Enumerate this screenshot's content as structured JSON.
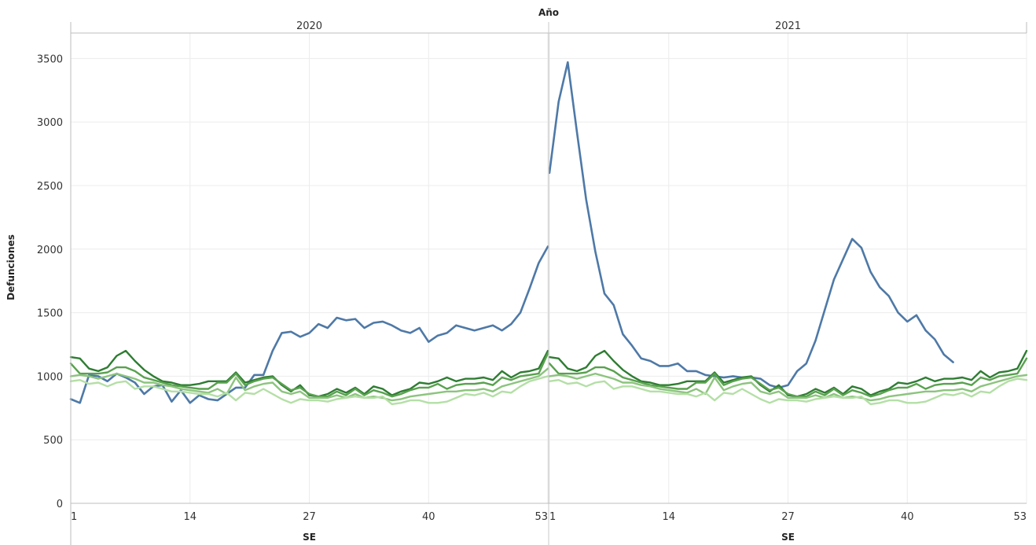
{
  "chart_data": {
    "type": "line",
    "column_header_title": "Año",
    "ylabel": "Defunciones",
    "xlabel": "SE",
    "ylim": [
      0,
      3700
    ],
    "y_ticks": [
      0,
      500,
      1000,
      1500,
      2000,
      2500,
      3000,
      3500
    ],
    "x_ticks": [
      1,
      14,
      27,
      40,
      53
    ],
    "grid": true,
    "panels": [
      {
        "label": "2020",
        "x_range": [
          1,
          53
        ],
        "series": [
          {
            "color": "#4e79a7",
            "values": [
              820,
              790,
              1010,
              1000,
              960,
              1020,
              990,
              950,
              860,
              920,
              930,
              800,
              890,
              790,
              850,
              820,
              810,
              860,
              910,
              910,
              1010,
              1010,
              1200,
              1340,
              1350,
              1310,
              1340,
              1410,
              1380,
              1460,
              1440,
              1450,
              1380,
              1420,
              1430,
              1400,
              1360,
              1340,
              1380,
              1270,
              1320,
              1340,
              1400,
              1380,
              1360,
              1380,
              1400,
              1360,
              1410,
              1500,
              1690,
              1890,
              2020
            ]
          },
          {
            "color": "#2e7d32",
            "values": [
              1150,
              1140,
              1060,
              1040,
              1070,
              1160,
              1200,
              1120,
              1050,
              1000,
              960,
              950,
              930,
              930,
              940,
              960,
              960,
              960,
              1030,
              950,
              970,
              990,
              1000,
              930,
              880,
              930,
              850,
              840,
              860,
              900,
              870,
              910,
              860,
              920,
              900,
              850,
              880,
              900,
              950,
              940,
              960,
              990,
              960,
              980,
              980,
              990,
              970,
              1040,
              990,
              1030,
              1040,
              1060,
              1200
            ]
          },
          {
            "color": "#59a14f",
            "values": [
              1100,
              1020,
              1020,
              1020,
              1030,
              1070,
              1070,
              1040,
              990,
              970,
              950,
              930,
              920,
              910,
              900,
              900,
              950,
              950,
              1020,
              930,
              960,
              980,
              990,
              940,
              890,
              910,
              860,
              840,
              840,
              880,
              850,
              900,
              850,
              890,
              870,
              840,
              860,
              890,
              910,
              910,
              940,
              900,
              930,
              940,
              940,
              950,
              930,
              990,
              970,
              1000,
              1010,
              1020,
              1180
            ]
          },
          {
            "color": "#8cc47e",
            "values": [
              1000,
              1010,
              1000,
              980,
              1000,
              1020,
              1000,
              980,
              950,
              950,
              930,
              920,
              900,
              890,
              880,
              870,
              900,
              860,
              990,
              890,
              920,
              940,
              950,
              880,
              860,
              880,
              830,
              830,
              830,
              850,
              830,
              860,
              830,
              840,
              830,
              810,
              820,
              840,
              850,
              860,
              870,
              880,
              880,
              890,
              890,
              900,
              880,
              920,
              940,
              960,
              980,
              1000,
              1060
            ]
          },
          {
            "color": "#b4dfa6",
            "values": [
              960,
              970,
              940,
              950,
              920,
              950,
              960,
              900,
              920,
              920,
              900,
              880,
              880,
              870,
              860,
              860,
              840,
              870,
              810,
              870,
              860,
              900,
              860,
              820,
              790,
              820,
              810,
              810,
              800,
              820,
              830,
              840,
              830,
              830,
              840,
              780,
              790,
              810,
              810,
              790,
              790,
              800,
              830,
              860,
              850,
              870,
              840,
              880,
              870,
              920,
              960,
              980,
              1000
            ]
          }
        ]
      },
      {
        "label": "2021",
        "x_range": [
          1,
          53
        ],
        "series": [
          {
            "color": "#4e79a7",
            "values": [
              2600,
              3160,
              3470,
              2920,
              2390,
              1980,
              1650,
              1560,
              1330,
              1240,
              1140,
              1120,
              1080,
              1080,
              1100,
              1040,
              1040,
              1010,
              1000,
              990,
              1000,
              990,
              990,
              980,
              930,
              910,
              930,
              1040,
              1100,
              1280,
              1520,
              1760,
              1920,
              2080,
              2010,
              1820,
              1700,
              1630,
              1500,
              1430,
              1480,
              1360,
              1290,
              1170,
              1110
            ]
          },
          {
            "color": "#2e7d32",
            "values": [
              1150,
              1140,
              1060,
              1040,
              1070,
              1160,
              1200,
              1120,
              1050,
              1000,
              960,
              950,
              930,
              930,
              940,
              960,
              960,
              960,
              1030,
              950,
              970,
              990,
              1000,
              930,
              880,
              930,
              850,
              840,
              860,
              900,
              870,
              910,
              860,
              920,
              900,
              850,
              880,
              900,
              950,
              940,
              960,
              990,
              960,
              980,
              980,
              990,
              970,
              1040,
              990,
              1030,
              1040,
              1060,
              1200
            ]
          },
          {
            "color": "#59a14f",
            "values": [
              1100,
              1020,
              1020,
              1020,
              1030,
              1070,
              1070,
              1040,
              990,
              970,
              950,
              930,
              920,
              910,
              900,
              900,
              950,
              950,
              1020,
              930,
              960,
              980,
              990,
              940,
              890,
              910,
              860,
              840,
              840,
              880,
              850,
              900,
              850,
              890,
              870,
              840,
              860,
              890,
              910,
              910,
              940,
              900,
              930,
              940,
              940,
              950,
              930,
              990,
              970,
              1000,
              1010,
              1020,
              1140
            ]
          },
          {
            "color": "#8cc47e",
            "values": [
              1000,
              1010,
              1000,
              980,
              1000,
              1020,
              1000,
              980,
              950,
              950,
              930,
              920,
              900,
              890,
              880,
              870,
              900,
              860,
              990,
              890,
              920,
              940,
              950,
              880,
              860,
              880,
              830,
              830,
              830,
              850,
              830,
              860,
              830,
              840,
              830,
              810,
              820,
              840,
              850,
              860,
              870,
              880,
              880,
              890,
              890,
              900,
              880,
              920,
              940,
              960,
              980,
              1000,
              1010
            ]
          },
          {
            "color": "#b4dfa6",
            "values": [
              960,
              970,
              940,
              950,
              920,
              950,
              960,
              900,
              920,
              920,
              900,
              880,
              880,
              870,
              860,
              860,
              840,
              870,
              810,
              870,
              860,
              900,
              860,
              820,
              790,
              820,
              810,
              810,
              800,
              820,
              830,
              840,
              830,
              830,
              840,
              780,
              790,
              810,
              810,
              790,
              790,
              800,
              830,
              860,
              850,
              870,
              840,
              880,
              870,
              920,
              960,
              980,
              970
            ]
          }
        ]
      }
    ]
  }
}
